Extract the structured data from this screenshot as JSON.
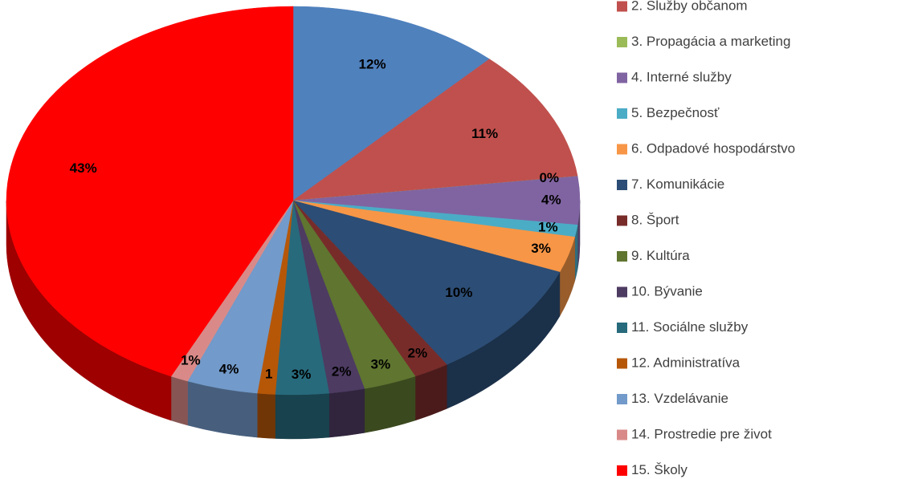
{
  "chart_data": {
    "type": "pie",
    "categories": [
      null,
      "2. Služby občanom",
      "3. Propagácia a marketing",
      "4. Interné služby",
      "5. Bezpečnosť",
      "6. Odpadové hospodárstvo",
      "7. Komunikácie",
      "8. Šport",
      "9. Kultúra",
      "10. Bývanie",
      "11. Sociálne služby",
      "12. Administratíva",
      "13. Vzdelávanie",
      "14. Prostredie pre život",
      "15. Školy"
    ],
    "values": [
      12,
      11,
      0,
      4,
      1,
      3,
      10,
      2,
      3,
      2,
      3,
      1,
      4,
      1,
      43
    ],
    "value_labels": [
      "12%",
      "11%",
      "0%",
      "4%",
      "1%",
      "3%",
      "10%",
      "2%",
      "3%",
      "2%",
      "3%",
      "1",
      "4%",
      "1%",
      "43%"
    ],
    "colors": [
      "#4f81bd",
      "#c0504d",
      "#9bbb59",
      "#8064a2",
      "#4bacc6",
      "#f79646",
      "#2c4d75",
      "#772c2a",
      "#5f7530",
      "#4d3b62",
      "#276a7c",
      "#b65708",
      "#729aca",
      "#d98a88",
      "#ff0000"
    ],
    "legend": "right"
  }
}
